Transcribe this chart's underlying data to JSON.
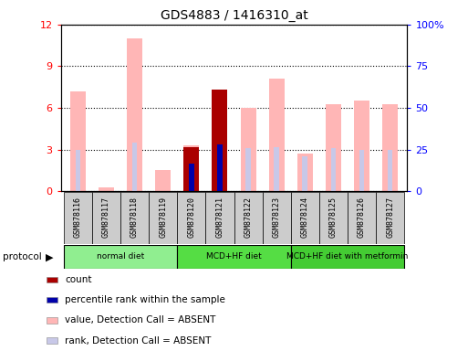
{
  "title": "GDS4883 / 1416310_at",
  "samples": [
    "GSM878116",
    "GSM878117",
    "GSM878118",
    "GSM878119",
    "GSM878120",
    "GSM878121",
    "GSM878122",
    "GSM878123",
    "GSM878124",
    "GSM878125",
    "GSM878126",
    "GSM878127"
  ],
  "value_absent": [
    7.2,
    0.3,
    11.0,
    1.5,
    3.3,
    7.1,
    6.0,
    8.1,
    2.7,
    6.3,
    6.5,
    6.3
  ],
  "rank_absent": [
    3.0,
    null,
    3.5,
    null,
    null,
    3.2,
    3.1,
    3.2,
    2.5,
    3.1,
    3.0,
    3.0
  ],
  "count_red": [
    null,
    null,
    null,
    null,
    3.2,
    7.3,
    null,
    null,
    null,
    null,
    null,
    null
  ],
  "count_blue": [
    null,
    null,
    null,
    null,
    2.0,
    3.4,
    null,
    null,
    null,
    null,
    null,
    null
  ],
  "ylim": [
    0,
    12
  ],
  "y2lim": [
    0,
    100
  ],
  "yticks": [
    0,
    3,
    6,
    9,
    12
  ],
  "y2ticks": [
    0,
    25,
    50,
    75,
    100
  ],
  "groups": [
    {
      "label": "normal diet",
      "start": 0,
      "end": 4
    },
    {
      "label": "MCD+HF diet",
      "start": 4,
      "end": 8
    },
    {
      "label": "MCD+HF diet with metformin",
      "start": 8,
      "end": 12
    }
  ],
  "group_colors": [
    "#90EE90",
    "#55DD44",
    "#44CC33"
  ],
  "pink_color": "#FFB6B6",
  "lavender_color": "#C8C8E8",
  "red_color": "#AA0000",
  "blue_color": "#0000AA",
  "cell_color": "#CCCCCC",
  "legend_items": [
    {
      "label": "count",
      "color": "#AA0000"
    },
    {
      "label": "percentile rank within the sample",
      "color": "#0000AA"
    },
    {
      "label": "value, Detection Call = ABSENT",
      "color": "#FFB6B6"
    },
    {
      "label": "rank, Detection Call = ABSENT",
      "color": "#C8C8E8"
    }
  ]
}
